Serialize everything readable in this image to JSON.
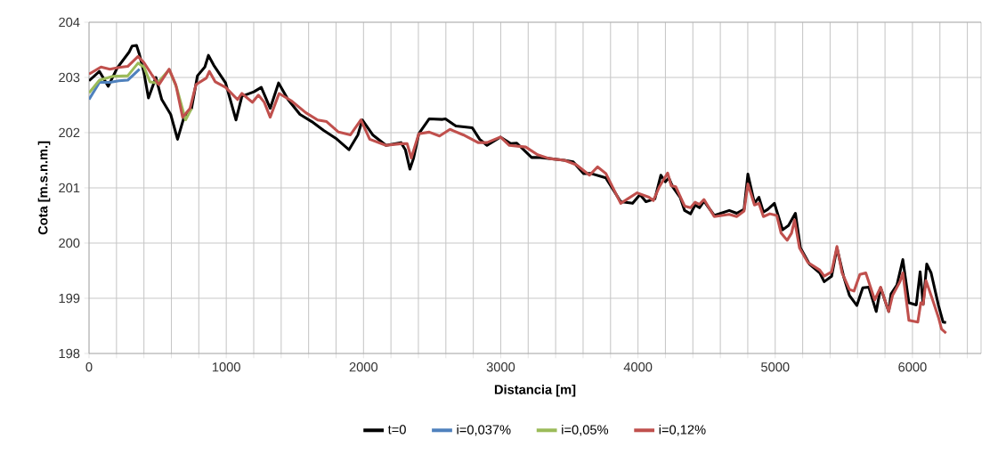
{
  "chart_data": {
    "type": "line",
    "xlabel": "Distancia [m]",
    "ylabel": "Cota [m.s.n.m.]",
    "xlim": [
      0,
      6500
    ],
    "ylim": [
      198,
      204
    ],
    "xticks": [
      0,
      {
        "value": 200,
        "label": null
      },
      {
        "value": 400,
        "label": null
      },
      {
        "value": 600,
        "label": null
      },
      {
        "value": 800,
        "label": null
      },
      1000,
      {
        "value": 1200,
        "label": null
      },
      {
        "value": 1400,
        "label": null
      },
      {
        "value": 1600,
        "label": null
      },
      {
        "value": 1800,
        "label": null
      },
      2000,
      {
        "value": 2200,
        "label": null
      },
      {
        "value": 2400,
        "label": null
      },
      {
        "value": 2600,
        "label": null
      },
      {
        "value": 2800,
        "label": null
      },
      3000,
      {
        "value": 3200,
        "label": null
      },
      {
        "value": 3400,
        "label": null
      },
      {
        "value": 3600,
        "label": null
      },
      {
        "value": 3800,
        "label": null
      },
      4000,
      {
        "value": 4200,
        "label": null
      },
      {
        "value": 4400,
        "label": null
      },
      {
        "value": 4600,
        "label": null
      },
      {
        "value": 4800,
        "label": null
      },
      5000,
      {
        "value": 5200,
        "label": null
      },
      {
        "value": 5400,
        "label": null
      },
      {
        "value": 5600,
        "label": null
      },
      {
        "value": 5800,
        "label": null
      },
      6000,
      {
        "value": 6200,
        "label": null
      },
      {
        "value": 6400,
        "label": null
      }
    ],
    "yticks": [
      198,
      199,
      200,
      201,
      202,
      203,
      204
    ],
    "grid": true,
    "legend": "bottom",
    "marker": "none",
    "line_style": "solid",
    "series": [
      {
        "name": "t=0",
        "color": "#000000",
        "x": [
          0,
          76,
          140,
          205,
          292,
          314,
          346,
          368,
          400,
          433,
          487,
          530,
          595,
          645,
          692,
          747,
          790,
          844,
          870,
          909,
          995,
          1071,
          1114,
          1201,
          1255,
          1320,
          1381,
          1450,
          1537,
          1623,
          1710,
          1797,
          1894,
          1959,
          1991,
          2067,
          2164,
          2273,
          2305,
          2338,
          2364,
          2403,
          2479,
          2576,
          2597,
          2673,
          2792,
          2846,
          2900,
          2998,
          3073,
          3117,
          3225,
          3290,
          3463,
          3528,
          3604,
          3658,
          3766,
          3874,
          3961,
          4015,
          4058,
          4123,
          4167,
          4199,
          4225,
          4253,
          4307,
          4340,
          4383,
          4416,
          4448,
          4481,
          4556,
          4665,
          4719,
          4773,
          4801,
          4849,
          4881,
          4914,
          4946,
          4994,
          5054,
          5097,
          5147,
          5184,
          5249,
          5325,
          5357,
          5411,
          5450,
          5498,
          5541,
          5595,
          5638,
          5682,
          5736,
          5768,
          5827,
          5844,
          5887,
          5930,
          5974,
          6028,
          6056,
          6078,
          6104,
          6136,
          6190,
          6223,
          6245
        ],
        "values": [
          202.94,
          203.11,
          202.84,
          203.17,
          203.46,
          203.57,
          203.58,
          203.41,
          203.09,
          202.63,
          203.0,
          202.6,
          202.33,
          201.88,
          202.28,
          202.44,
          203.03,
          203.19,
          203.4,
          203.22,
          202.9,
          202.23,
          202.66,
          202.74,
          202.82,
          202.44,
          202.9,
          202.6,
          202.33,
          202.2,
          202.04,
          201.9,
          201.69,
          201.96,
          202.23,
          201.96,
          201.77,
          201.82,
          201.69,
          201.34,
          201.53,
          201.98,
          202.25,
          202.24,
          202.25,
          202.12,
          202.09,
          201.88,
          201.77,
          201.92,
          201.8,
          201.81,
          201.55,
          201.55,
          201.5,
          201.47,
          201.26,
          201.26,
          201.18,
          200.75,
          200.72,
          200.88,
          200.75,
          200.8,
          201.23,
          201.11,
          201.18,
          201.02,
          200.83,
          200.59,
          200.53,
          200.69,
          200.64,
          200.76,
          200.5,
          200.59,
          200.54,
          200.61,
          201.25,
          200.72,
          200.83,
          200.56,
          200.61,
          200.72,
          200.24,
          200.32,
          200.54,
          199.91,
          199.62,
          199.46,
          199.3,
          199.4,
          199.91,
          199.4,
          199.05,
          198.87,
          199.19,
          199.2,
          198.76,
          199.19,
          198.76,
          199.08,
          199.24,
          199.7,
          198.92,
          198.88,
          199.48,
          198.89,
          199.62,
          199.46,
          198.87,
          198.57,
          198.56
        ]
      },
      {
        "name": "i=0,037%",
        "color": "#4f81bd",
        "x": [
          0,
          76,
          152,
          217,
          282,
          368
        ],
        "values": [
          202.6,
          202.91,
          202.91,
          202.94,
          202.95,
          203.15
        ]
      },
      {
        "name": "i=0,05%",
        "color": "#9bbb59",
        "x": [
          0,
          76,
          173,
          282,
          357,
          400,
          444,
          498,
          584,
          638,
          703,
          747
        ],
        "values": [
          202.72,
          202.95,
          203.02,
          203.03,
          203.26,
          203.19,
          202.92,
          202.9,
          203.14,
          202.82,
          202.23,
          202.44
        ]
      },
      {
        "name": "i=0,12%",
        "color": "#c0504d",
        "x": [
          0,
          87,
          152,
          217,
          282,
          357,
          400,
          455,
          509,
          584,
          632,
          682,
          736,
          779,
          855,
          877,
          920,
          995,
          1082,
          1114,
          1190,
          1234,
          1277,
          1320,
          1385,
          1472,
          1580,
          1666,
          1731,
          1818,
          1905,
          1981,
          2045,
          2164,
          2273,
          2318,
          2348,
          2403,
          2479,
          2554,
          2630,
          2727,
          2835,
          2900,
          2998,
          3063,
          3182,
          3268,
          3355,
          3463,
          3550,
          3647,
          3706,
          3766,
          3874,
          3994,
          4080,
          4112,
          4156,
          4216,
          4242,
          4275,
          4307,
          4340,
          4383,
          4416,
          4448,
          4481,
          4556,
          4665,
          4719,
          4773,
          4801,
          4849,
          4881,
          4914,
          4961,
          5011,
          5043,
          5087,
          5119,
          5141,
          5177,
          5238,
          5325,
          5357,
          5411,
          5450,
          5487,
          5541,
          5574,
          5617,
          5660,
          5725,
          5768,
          5827,
          5855,
          5909,
          5930,
          5974,
          6039,
          6061,
          6078,
          6099,
          6147,
          6190,
          6212,
          6245
        ],
        "values": [
          203.06,
          203.19,
          203.15,
          203.18,
          203.2,
          203.38,
          203.27,
          203.06,
          202.87,
          203.15,
          202.87,
          202.28,
          202.44,
          202.87,
          202.99,
          203.11,
          202.92,
          202.82,
          202.6,
          202.71,
          202.55,
          202.68,
          202.55,
          202.28,
          202.71,
          202.58,
          202.36,
          202.23,
          202.2,
          202.01,
          201.96,
          202.23,
          201.88,
          201.77,
          201.8,
          201.8,
          201.54,
          201.98,
          202.01,
          201.94,
          202.06,
          201.96,
          201.82,
          201.82,
          201.92,
          201.77,
          201.74,
          201.6,
          201.53,
          201.5,
          201.42,
          201.23,
          201.38,
          201.26,
          200.72,
          200.91,
          200.83,
          200.77,
          201.02,
          201.27,
          201.04,
          201.02,
          200.85,
          200.67,
          200.64,
          200.74,
          200.7,
          200.79,
          200.48,
          200.52,
          200.48,
          200.58,
          201.07,
          200.69,
          200.72,
          200.48,
          200.53,
          200.5,
          200.18,
          200.05,
          200.18,
          200.42,
          199.91,
          199.65,
          199.51,
          199.4,
          199.48,
          199.94,
          199.46,
          199.16,
          199.13,
          199.43,
          199.46,
          198.97,
          199.2,
          198.76,
          199.05,
          199.3,
          199.46,
          198.6,
          198.57,
          198.92,
          198.89,
          199.32,
          198.97,
          198.65,
          198.44,
          198.37
        ]
      }
    ]
  }
}
